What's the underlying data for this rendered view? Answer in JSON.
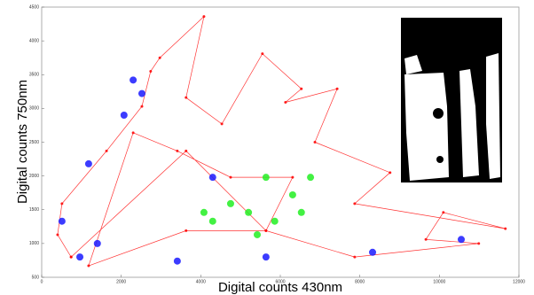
{
  "chart_data": {
    "type": "scatter",
    "x_label": "Digital counts 430nm",
    "y_label": "Digital counts 750nm",
    "xlim": [
      0,
      12000
    ],
    "ylim": [
      500,
      4500
    ],
    "xticks": [
      0,
      2000,
      4000,
      6000,
      8000,
      10000,
      12000
    ],
    "yticks": [
      500,
      1000,
      1500,
      2000,
      2500,
      3000,
      3500,
      4000,
      4500
    ],
    "series": [
      {
        "color": "#ff0000",
        "connected": true,
        "x": [
          740,
          400,
          510,
          1630,
          2520,
          2740,
          2970,
          4080,
          3630,
          4530,
          5550,
          6530,
          6130,
          7430,
          6870,
          8760,
          7870,
          11660,
          10100,
          9660,
          10990,
          7870,
          5640,
          3630,
          1180,
          2300,
          3410,
          4750,
          6310,
          5640,
          3630,
          740
        ],
        "values": [
          800,
          1130,
          1590,
          2370,
          3030,
          3550,
          3750,
          4360,
          3160,
          2770,
          3810,
          3290,
          3090,
          3290,
          2500,
          2050,
          1590,
          1220,
          1460,
          1060,
          1000,
          800,
          1190,
          1190,
          670,
          2640,
          2370,
          1980,
          1980,
          1190,
          2370,
          800
        ]
      },
      {
        "color": "#1a1aff",
        "connected": false,
        "x": [
          2300,
          2070,
          1180,
          510,
          960,
          3410,
          5640,
          8320,
          10550,
          4300,
          2520,
          1400
        ],
        "values": [
          3420,
          2900,
          2180,
          1330,
          800,
          740,
          800,
          870,
          1060,
          1980,
          3220,
          1000
        ]
      },
      {
        "color": "#22ee22",
        "connected": false,
        "x": [
          5200,
          4300,
          6310,
          5640,
          4750,
          5860,
          6530,
          4080,
          5420,
          6760
        ],
        "values": [
          1460,
          1330,
          1720,
          1980,
          1590,
          1330,
          1460,
          1460,
          1130,
          1980
        ]
      }
    ]
  }
}
